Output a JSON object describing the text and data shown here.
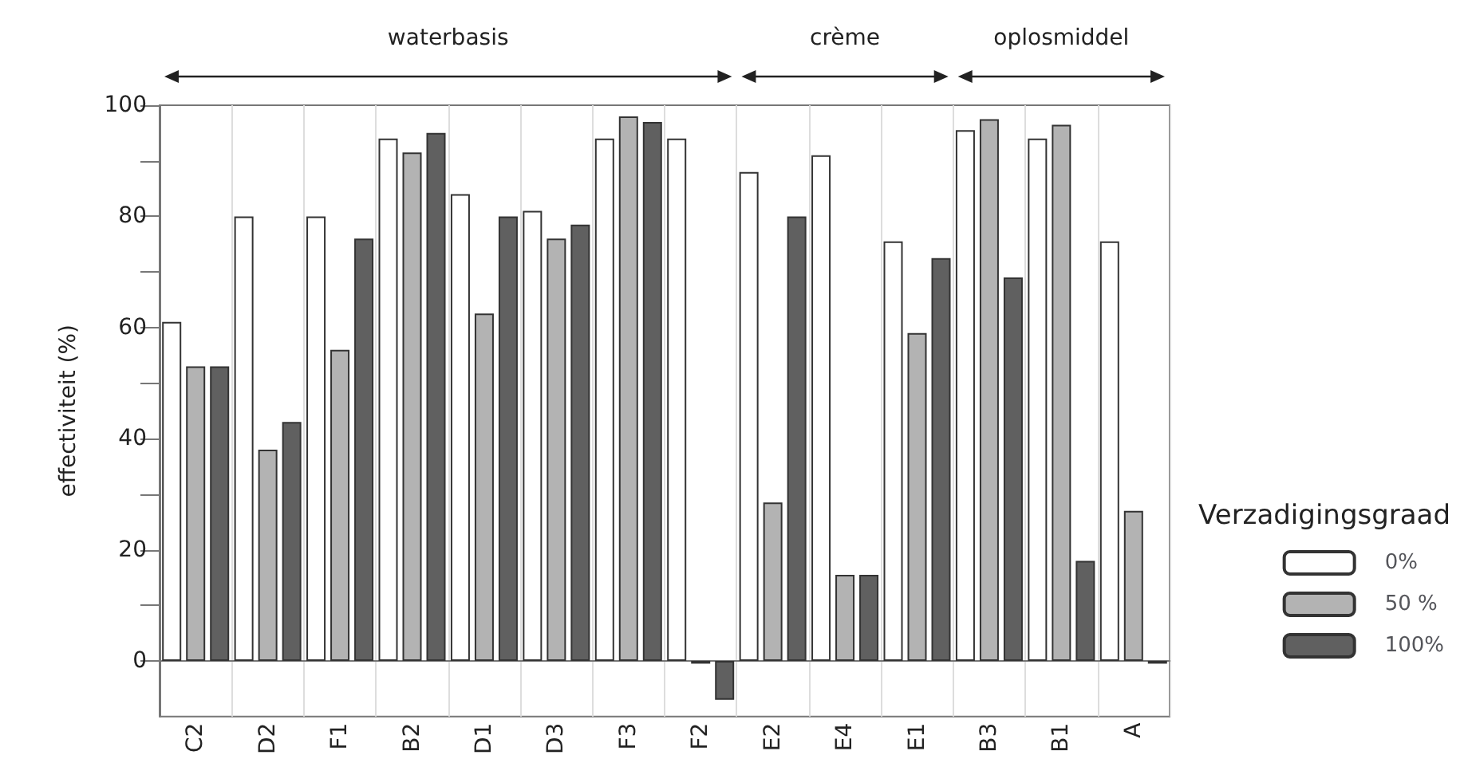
{
  "chart_data": {
    "type": "bar",
    "ylabel": "effectiviteit (%)",
    "legend_title": "Verzadigingsgraad",
    "categories": [
      "C2",
      "D2",
      "F1",
      "B2",
      "D1",
      "D3",
      "F3",
      "F2",
      "E2",
      "E4",
      "E1",
      "B3",
      "B1",
      "A"
    ],
    "series": [
      {
        "name": "0%",
        "color": "#ffffff",
        "values": [
          61,
          80,
          80,
          94,
          84,
          81,
          94,
          94,
          88,
          91,
          75.5,
          95.5,
          94,
          75.5
        ]
      },
      {
        "name": "50 %",
        "color": "#b3b3b3",
        "values": [
          53,
          38,
          56,
          91.5,
          62.5,
          76,
          98,
          -0.5,
          28.5,
          15.5,
          59,
          97.5,
          96.5,
          27
        ]
      },
      {
        "name": "100%",
        "color": "#606060",
        "values": [
          53,
          43,
          76,
          95,
          80,
          78.5,
          97,
          -7,
          80,
          15.5,
          72.5,
          69,
          18,
          -0.5
        ]
      }
    ],
    "ylim": [
      -10,
      100
    ],
    "yticks": [
      0,
      {
        "value": 10,
        "label": null
      },
      20,
      {
        "value": 30,
        "label": null
      },
      40,
      {
        "value": 50,
        "label": null
      },
      60,
      {
        "value": 70,
        "label": null
      },
      80,
      {
        "value": 90,
        "label": null
      },
      100
    ],
    "annotations": [
      "waterbasis",
      "crème",
      "oplosmiddel"
    ],
    "grid": "x",
    "legend": "right"
  }
}
